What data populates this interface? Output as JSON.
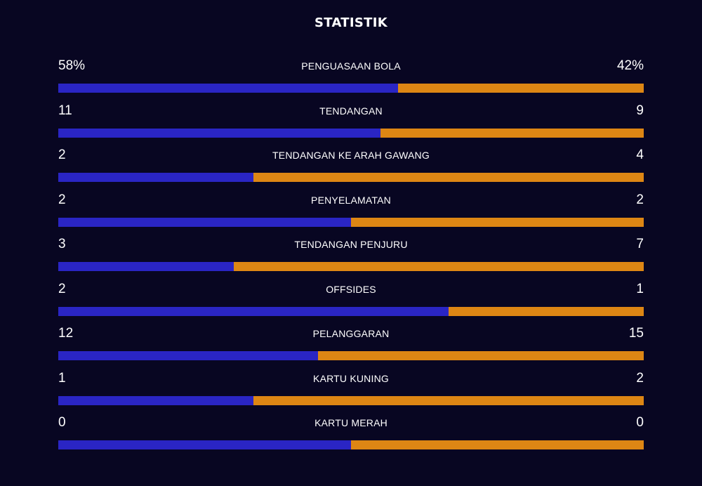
{
  "title": "STATISTIK",
  "colors": {
    "background": "#080622",
    "home": "#2a25c4",
    "away": "#dd8614"
  },
  "stats": [
    {
      "label": "PENGUASAAN BOLA",
      "home": "58%",
      "away": "42%",
      "home_share": 0.58
    },
    {
      "label": "TENDANGAN",
      "home": "11",
      "away": "9",
      "home_share": 0.55
    },
    {
      "label": "TENDANGAN KE ARAH GAWANG",
      "home": "2",
      "away": "4",
      "home_share": 0.333
    },
    {
      "label": "PENYELAMATAN",
      "home": "2",
      "away": "2",
      "home_share": 0.5
    },
    {
      "label": "TENDANGAN PENJURU",
      "home": "3",
      "away": "7",
      "home_share": 0.3
    },
    {
      "label": "OFFSIDES",
      "home": "2",
      "away": "1",
      "home_share": 0.667
    },
    {
      "label": "PELANGGARAN",
      "home": "12",
      "away": "15",
      "home_share": 0.444
    },
    {
      "label": "KARTU KUNING",
      "home": "1",
      "away": "2",
      "home_share": 0.333
    },
    {
      "label": "KARTU MERAH",
      "home": "0",
      "away": "0",
      "home_share": 0.5
    }
  ]
}
